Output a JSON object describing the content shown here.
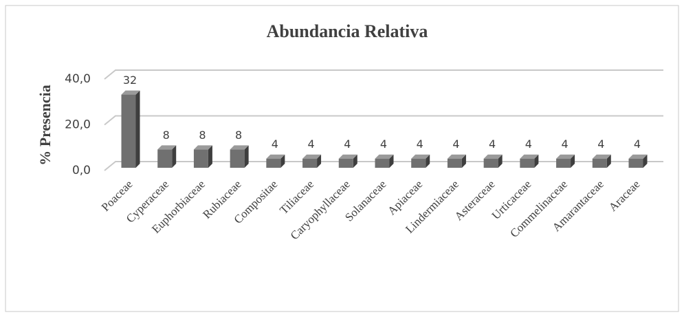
{
  "chart_data": {
    "type": "bar3d",
    "title": "Abundancia Relativa",
    "y_label": "% Presencia",
    "categories": [
      "Poaceae",
      "Cyperaceae",
      "Euphorbiaceae",
      "Rubiaceae",
      "Compositae",
      "Tiliaceae",
      "Caryophyllaceae",
      "Solanaceae",
      "Apiaceae",
      "Lindermiaceae",
      "Asteraceae",
      "Urticaceae",
      "Commelinaceae",
      "Amarantaceae",
      "Araceae"
    ],
    "values": [
      32,
      8,
      8,
      8,
      4,
      4,
      4,
      4,
      4,
      4,
      4,
      4,
      4,
      4,
      4
    ],
    "color": "#707070",
    "ylim": [
      0,
      40
    ],
    "yticks": [
      {
        "value": 0,
        "label": "0,0"
      },
      {
        "value": 20,
        "label": "20,0"
      },
      {
        "value": 40,
        "label": "40,0"
      }
    ],
    "grid": true
  }
}
